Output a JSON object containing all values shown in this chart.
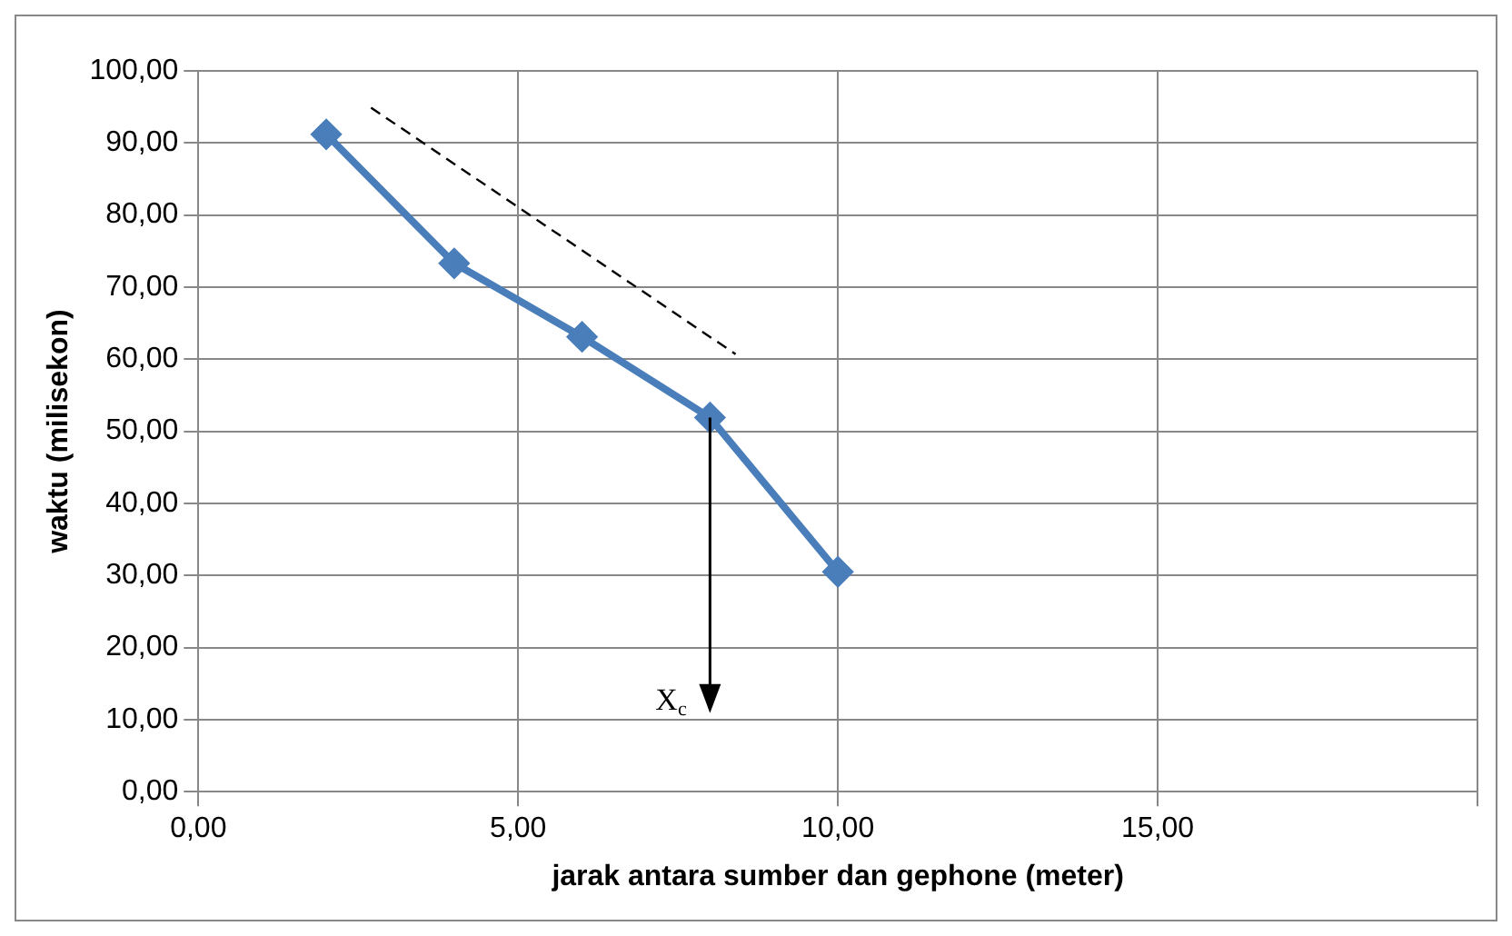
{
  "chart_data": {
    "type": "line",
    "xlabel": "jarak antara sumber dan gephone (meter)",
    "ylabel": "waktu (milisekon)",
    "x": [
      2,
      4,
      6,
      8,
      10
    ],
    "series": [
      {
        "color": "#4a7ebb",
        "values": [
          91.2,
          73.3,
          63.1,
          51.9,
          30.5
        ],
        "marker": "diamond",
        "line_style": "solid"
      },
      {
        "type": "line",
        "color": "#000000",
        "x": [
          2.7,
          8.4
        ],
        "values": [
          94.9,
          60.7
        ],
        "marker": "none",
        "line_style": "dashed"
      }
    ],
    "xlim": [
      0,
      20
    ],
    "xticks": [
      {
        "value": 0,
        "label": "0,00"
      },
      {
        "value": 5,
        "label": "5,00"
      },
      {
        "value": 10,
        "label": "10,00"
      },
      {
        "value": 15,
        "label": "15,00"
      },
      {
        "value": 20,
        "label": null
      }
    ],
    "ylim": [
      0,
      100
    ],
    "yticks": [
      {
        "value": 0,
        "label": "0,00"
      },
      {
        "value": 10,
        "label": "10,00"
      },
      {
        "value": 20,
        "label": "20,00"
      },
      {
        "value": 30,
        "label": "30,00"
      },
      {
        "value": 40,
        "label": "40,00"
      },
      {
        "value": 50,
        "label": "50,00"
      },
      {
        "value": 60,
        "label": "60,00"
      },
      {
        "value": 70,
        "label": "70,00"
      },
      {
        "value": 80,
        "label": "80,00"
      },
      {
        "value": 90,
        "label": "90,00"
      },
      {
        "value": 100,
        "label": "100,00"
      }
    ],
    "grid": true,
    "legend": false,
    "annotations": [
      {
        "text": "X$_{c}$",
        "x": 8,
        "y": 51.9
      }
    ]
  }
}
